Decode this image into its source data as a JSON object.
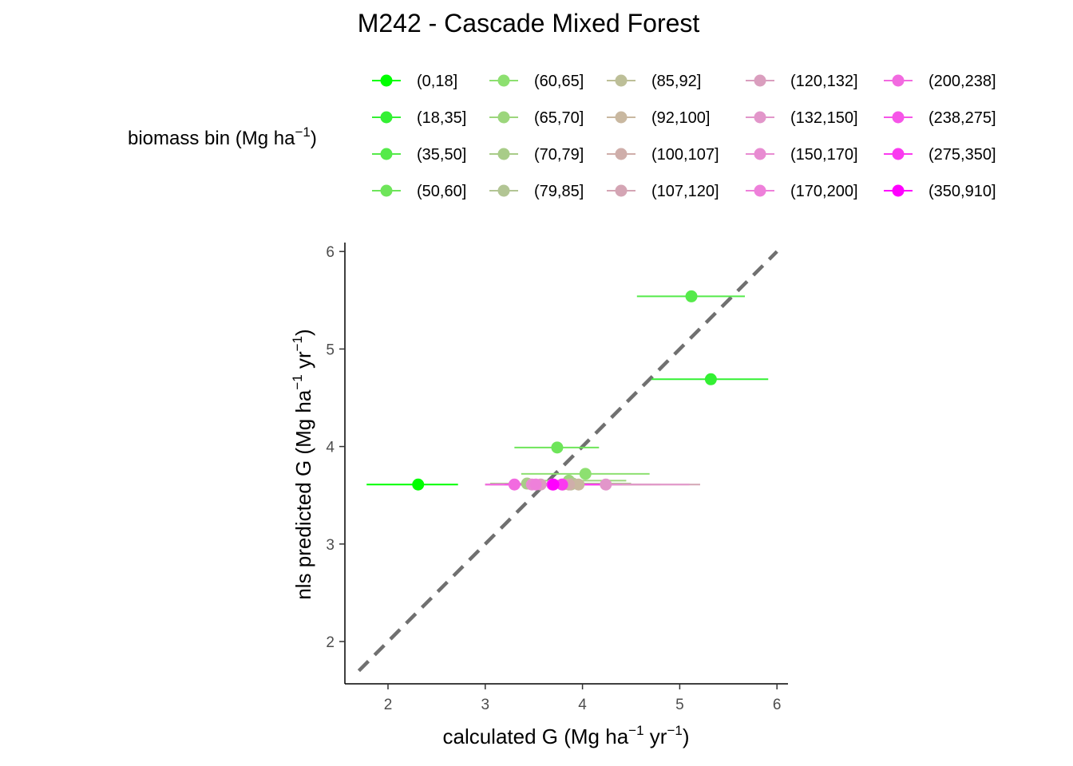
{
  "chart_data": {
    "type": "scatter",
    "title": "M242 - Cascade Mixed Forest",
    "xlabel": {
      "text": "calculated G (Mg ha",
      "sup1": "−1",
      "mid": " yr",
      "sup2": "−1",
      "end": ")"
    },
    "ylabel": {
      "text": "nls predicted G (Mg ha",
      "sup1": "−1",
      "mid": " yr",
      "sup2": "−1",
      "end": ")"
    },
    "xlim": [
      1.55,
      6.1
    ],
    "ylim": [
      1.55,
      6.1
    ],
    "xticks": [
      "2",
      "3",
      "4",
      "5",
      "6"
    ],
    "yticks": [
      "2",
      "3",
      "4",
      "5",
      "6"
    ],
    "grid": false,
    "reference_line": {
      "type": "1:1",
      "style": "dashed",
      "color": "#707070",
      "from": [
        1.7,
        1.7
      ],
      "to": [
        6.0,
        6.0
      ]
    },
    "legend": {
      "title": {
        "text": "biomass bin (Mg ha",
        "sup": "−1",
        "end": ")"
      },
      "placement": "top",
      "entries": [
        {
          "label": "(0,18]",
          "color": "#00FF00"
        },
        {
          "label": "(18,35]",
          "color": "#33F033"
        },
        {
          "label": "(35,50]",
          "color": "#55EA4A"
        },
        {
          "label": "(50,60]",
          "color": "#6EE55A"
        },
        {
          "label": "(60,65]",
          "color": "#8DE070"
        },
        {
          "label": "(65,70]",
          "color": "#9CD67C"
        },
        {
          "label": "(70,79]",
          "color": "#A8CC88"
        },
        {
          "label": "(79,85]",
          "color": "#B2C594"
        },
        {
          "label": "(85,92]",
          "color": "#BDBF98"
        },
        {
          "label": "(92,100]",
          "color": "#C9B8A0"
        },
        {
          "label": "(100,107]",
          "color": "#CFAEAA"
        },
        {
          "label": "(107,120]",
          "color": "#D4A5B4"
        },
        {
          "label": "(120,132]",
          "color": "#DA9EBE"
        },
        {
          "label": "(132,150]",
          "color": "#E296CA"
        },
        {
          "label": "(150,170]",
          "color": "#E88CD2"
        },
        {
          "label": "(170,200]",
          "color": "#EE80DA"
        },
        {
          "label": "(200,238]",
          "color": "#F26AE0"
        },
        {
          "label": "(238,275]",
          "color": "#F655E8"
        },
        {
          "label": "(275,350]",
          "color": "#FA3AF0"
        },
        {
          "label": "(350,910]",
          "color": "#FF00FF"
        }
      ]
    },
    "series": [
      {
        "name": "(0,18]",
        "x": 2.31,
        "y": 3.61,
        "xmin": 1.78,
        "xmax": 2.72
      },
      {
        "name": "(18,35]",
        "x": 5.32,
        "y": 4.69,
        "xmin": 4.71,
        "xmax": 5.91
      },
      {
        "name": "(35,50]",
        "x": 5.12,
        "y": 5.54,
        "xmin": 4.56,
        "xmax": 5.67
      },
      {
        "name": "(50,60]",
        "x": 3.74,
        "y": 3.99,
        "xmin": 3.3,
        "xmax": 4.17
      },
      {
        "name": "(60,65]",
        "x": 4.03,
        "y": 3.72,
        "xmin": 3.37,
        "xmax": 4.69
      },
      {
        "name": "(65,70]",
        "x": 3.86,
        "y": 3.65,
        "xmin": 3.4,
        "xmax": 4.45
      },
      {
        "name": "(70,79]",
        "x": 3.43,
        "y": 3.62,
        "xmin": 3.05,
        "xmax": 4.4
      },
      {
        "name": "(79,85]",
        "x": 3.9,
        "y": 3.62,
        "xmin": 3.1,
        "xmax": 4.5
      },
      {
        "name": "(85,92]",
        "x": 3.88,
        "y": 3.61,
        "xmin": 3.0,
        "xmax": 4.6
      },
      {
        "name": "(92,100]",
        "x": 3.96,
        "y": 3.61,
        "xmin": 3.05,
        "xmax": 4.7
      },
      {
        "name": "(100,107]",
        "x": 3.86,
        "y": 3.61,
        "xmin": 3.1,
        "xmax": 4.8
      },
      {
        "name": "(107,120]",
        "x": 3.8,
        "y": 3.61,
        "xmin": 3.0,
        "xmax": 5.21
      },
      {
        "name": "(120,132]",
        "x": 3.57,
        "y": 3.61,
        "xmin": 3.0,
        "xmax": 4.5
      },
      {
        "name": "(132,150]",
        "x": 4.24,
        "y": 3.61,
        "xmin": 3.2,
        "xmax": 5.1
      },
      {
        "name": "(150,170]",
        "x": 3.48,
        "y": 3.61,
        "xmin": 3.0,
        "xmax": 4.4
      },
      {
        "name": "(170,200]",
        "x": 3.52,
        "y": 3.61,
        "xmin": 3.1,
        "xmax": 4.3
      },
      {
        "name": "(200,238]",
        "x": 3.3,
        "y": 3.61,
        "xmin": 3.0,
        "xmax": 3.8
      },
      {
        "name": "(238,275]",
        "x": 3.69,
        "y": 3.61,
        "xmin": 3.2,
        "xmax": 4.2
      },
      {
        "name": "(275,350]",
        "x": 3.79,
        "y": 3.61,
        "xmin": 3.3,
        "xmax": 4.25
      },
      {
        "name": "(350,910]",
        "x": 3.7,
        "y": 3.61,
        "xmin": 3.4,
        "xmax": 4.0
      }
    ]
  }
}
